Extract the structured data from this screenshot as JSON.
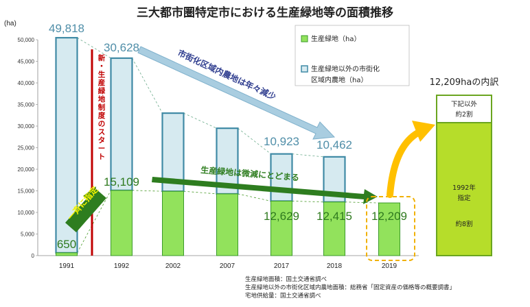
{
  "chart_data": {
    "type": "bar",
    "title": "三大都市圏特定市における生産緑地等の面積推移",
    "y_unit": "(ha)",
    "ylim": [
      0,
      50000
    ],
    "yticks": [
      "0",
      "5,000",
      "10,000",
      "15,000",
      "20,000",
      "25,000",
      "30,000",
      "35,000",
      "40,000",
      "45,000",
      "50,000"
    ],
    "categories": [
      "1991",
      "1992",
      "2002",
      "2007",
      "2017",
      "2018",
      "2019"
    ],
    "series": [
      {
        "name": "生産緑地（ha）",
        "values": [
          650,
          15109,
          14900,
          14300,
          12629,
          12415,
          12209
        ],
        "color": "#92e25c"
      },
      {
        "name": "生産緑地以外の市街化区域内農地（ha）",
        "values": [
          49818,
          30628,
          18100,
          15200,
          10923,
          10462,
          0
        ],
        "color": "#d6eaf0"
      }
    ],
    "stacked": true,
    "legend_position": "top-right",
    "value_labels": {
      "blue": [
        "49,818",
        "30,628",
        "10,923",
        "10,462"
      ],
      "green": [
        "650",
        "15,109",
        "12,629",
        "12,415",
        "12,209"
      ]
    }
  },
  "legend": {
    "green": "生産緑地（ha）",
    "blue_line1": "生産緑地以外の市街化",
    "blue_line2": "区域内農地（ha）"
  },
  "annotations": {
    "red_line": [
      "新",
      "・",
      "生",
      "産",
      "緑",
      "地",
      "制",
      "度",
      "の",
      "ス",
      "タ",
      "ー",
      "ト"
    ],
    "blue_arrow": "市街化区域内農地は年々減少",
    "green_arrow": "生産緑地は微減にとどまる",
    "designation": "一斉に指定"
  },
  "breakdown": {
    "title": "12,209haの内訳",
    "top_line1": "下記以外",
    "top_line2": "約2割",
    "bottom_line1": "1992年",
    "bottom_line2": "指定",
    "bottom_line3": "約8割"
  },
  "sources": [
    "生産緑地面積：国土交通省調べ",
    "生産緑地以外の市街化区域内農地面積：総務省「固定資産の価格等の概要調書」",
    "宅地供給量：国土交通省調べ"
  ],
  "colors": {
    "green_fill": "#92e25c",
    "green_stroke": "#3a9a2a",
    "blue_fill": "#d6eaf0",
    "blue_stroke": "#3f8aa5",
    "red_line": "#c00000",
    "yellow": "#ffc000",
    "breakdown_fill": "#b6dd2a"
  }
}
